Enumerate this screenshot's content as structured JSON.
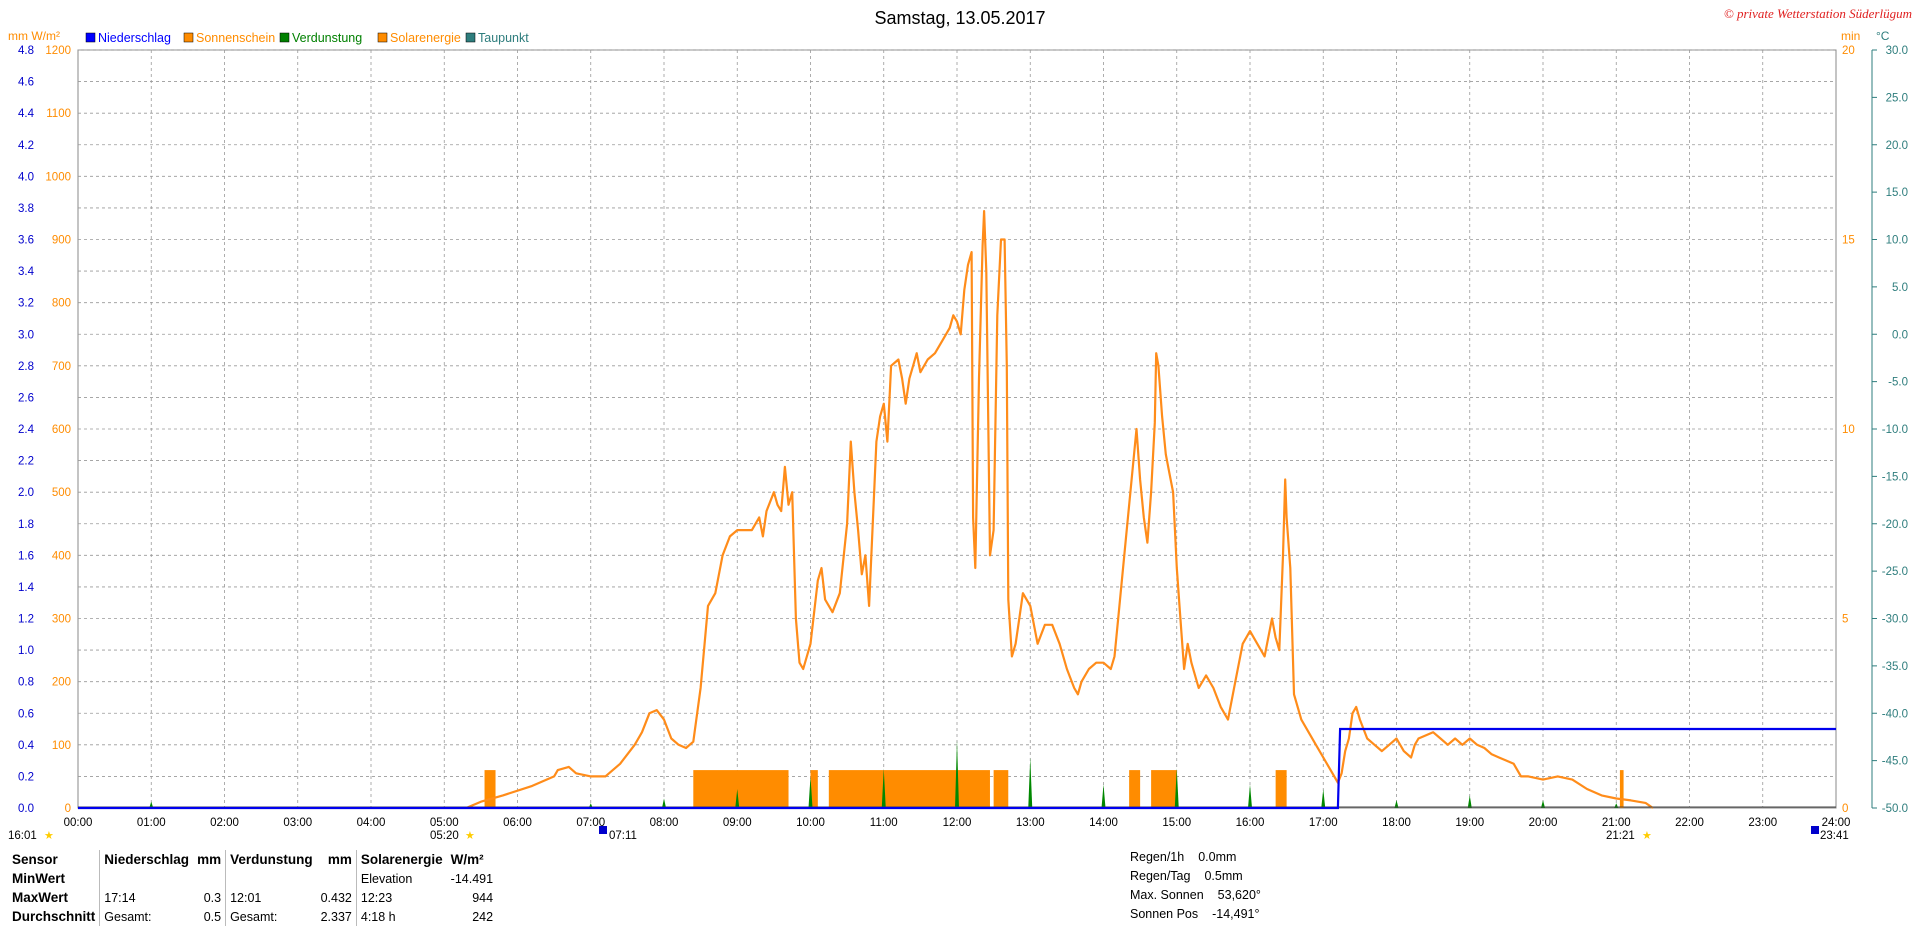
{
  "header": {
    "title": "Samstag, 13.05.2017",
    "copyright": "© private Wetterstation Süderlügum",
    "left_units": "mm  W/m²",
    "right_unit_min": "min",
    "right_unit_temp": "°C"
  },
  "legend": [
    {
      "label": "Niederschlag",
      "color": "#0000ff"
    },
    {
      "label": "Sonnenschein",
      "color": "#ff8c00"
    },
    {
      "label": "Verdunstung",
      "color": "#008000"
    },
    {
      "label": "Solarenergie",
      "color": "#ff8c00"
    },
    {
      "label": "Taupunkt",
      "color": "#2e7d7d"
    }
  ],
  "colors": {
    "solar": "#ff8c1a",
    "sunshine": "#ff8c00",
    "rain": "#0000ee",
    "evap": "#008800",
    "mm_axis": "#0000cc",
    "wm2_axis": "#ff8c00",
    "temp_axis": "#2e7d7d",
    "grid": "#999999"
  },
  "chart_data": {
    "type": "line",
    "x_unit": "hours",
    "x_range": [
      0,
      24
    ],
    "x_ticks": [
      "00:00",
      "01:00",
      "02:00",
      "03:00",
      "04:00",
      "05:00",
      "06:00",
      "07:00",
      "08:00",
      "09:00",
      "10:00",
      "11:00",
      "12:00",
      "13:00",
      "14:00",
      "15:00",
      "16:00",
      "17:00",
      "18:00",
      "19:00",
      "20:00",
      "21:00",
      "22:00",
      "23:00",
      "24:00"
    ],
    "axes": {
      "mm": {
        "range": [
          0,
          4.8
        ],
        "ticks": [
          "0.0",
          "0.2",
          "0.4",
          "0.6",
          "0.8",
          "1.0",
          "1.2",
          "1.4",
          "1.6",
          "1.8",
          "2.0",
          "2.2",
          "2.4",
          "2.6",
          "2.8",
          "3.0",
          "3.2",
          "3.4",
          "3.6",
          "3.8",
          "4.0",
          "4.2",
          "4.4",
          "4.6",
          "4.8"
        ]
      },
      "wm2": {
        "range": [
          0,
          1200
        ],
        "ticks": [
          "0",
          "100",
          "200",
          "300",
          "400",
          "500",
          "600",
          "700",
          "800",
          "900",
          "1000",
          "1100",
          "1200"
        ]
      },
      "min": {
        "range": [
          0,
          20
        ],
        "ticks": [
          "0",
          "5",
          "10",
          "15",
          "20"
        ]
      },
      "temp": {
        "range": [
          -50,
          30
        ],
        "ticks": [
          "-50.0",
          "-45.0",
          "-40.0",
          "-35.0",
          "-30.0",
          "-25.0",
          "-20.0",
          "-15.0",
          "-10.0",
          "-5.0",
          "0.0",
          "5.0",
          "10.0",
          "15.0",
          "20.0",
          "25.0",
          "30.0"
        ]
      }
    },
    "series": [
      {
        "name": "Solarenergie",
        "axis": "wm2",
        "points": [
          [
            5.3,
            0
          ],
          [
            5.5,
            10
          ],
          [
            5.8,
            20
          ],
          [
            6.2,
            35
          ],
          [
            6.5,
            50
          ],
          [
            6.55,
            60
          ],
          [
            6.7,
            65
          ],
          [
            6.8,
            55
          ],
          [
            7.0,
            50
          ],
          [
            7.2,
            50
          ],
          [
            7.4,
            70
          ],
          [
            7.6,
            100
          ],
          [
            7.7,
            120
          ],
          [
            7.8,
            150
          ],
          [
            7.9,
            155
          ],
          [
            8.0,
            140
          ],
          [
            8.1,
            110
          ],
          [
            8.2,
            100
          ],
          [
            8.3,
            95
          ],
          [
            8.4,
            105
          ],
          [
            8.5,
            190
          ],
          [
            8.6,
            320
          ],
          [
            8.7,
            340
          ],
          [
            8.8,
            400
          ],
          [
            8.9,
            430
          ],
          [
            9.0,
            440
          ],
          [
            9.1,
            440
          ],
          [
            9.2,
            440
          ],
          [
            9.3,
            460
          ],
          [
            9.35,
            430
          ],
          [
            9.4,
            470
          ],
          [
            9.5,
            500
          ],
          [
            9.55,
            480
          ],
          [
            9.6,
            470
          ],
          [
            9.65,
            540
          ],
          [
            9.7,
            480
          ],
          [
            9.75,
            500
          ],
          [
            9.8,
            300
          ],
          [
            9.85,
            230
          ],
          [
            9.9,
            220
          ],
          [
            10.0,
            260
          ],
          [
            10.1,
            360
          ],
          [
            10.15,
            380
          ],
          [
            10.2,
            330
          ],
          [
            10.3,
            310
          ],
          [
            10.4,
            340
          ],
          [
            10.5,
            450
          ],
          [
            10.55,
            580
          ],
          [
            10.6,
            500
          ],
          [
            10.65,
            440
          ],
          [
            10.7,
            370
          ],
          [
            10.75,
            400
          ],
          [
            10.8,
            320
          ],
          [
            10.9,
            580
          ],
          [
            10.95,
            620
          ],
          [
            11.0,
            640
          ],
          [
            11.05,
            580
          ],
          [
            11.1,
            700
          ],
          [
            11.2,
            710
          ],
          [
            11.25,
            680
          ],
          [
            11.3,
            640
          ],
          [
            11.35,
            680
          ],
          [
            11.4,
            700
          ],
          [
            11.45,
            720
          ],
          [
            11.5,
            690
          ],
          [
            11.6,
            710
          ],
          [
            11.7,
            720
          ],
          [
            11.8,
            740
          ],
          [
            11.9,
            760
          ],
          [
            11.95,
            780
          ],
          [
            12.0,
            770
          ],
          [
            12.05,
            750
          ],
          [
            12.1,
            820
          ],
          [
            12.15,
            860
          ],
          [
            12.2,
            880
          ],
          [
            12.22,
            460
          ],
          [
            12.25,
            380
          ],
          [
            12.3,
            680
          ],
          [
            12.35,
            890
          ],
          [
            12.37,
            945
          ],
          [
            12.4,
            850
          ],
          [
            12.45,
            400
          ],
          [
            12.5,
            440
          ],
          [
            12.55,
            780
          ],
          [
            12.6,
            900
          ],
          [
            12.65,
            900
          ],
          [
            12.68,
            700
          ],
          [
            12.7,
            330
          ],
          [
            12.75,
            240
          ],
          [
            12.8,
            260
          ],
          [
            12.85,
            300
          ],
          [
            12.9,
            340
          ],
          [
            13.0,
            320
          ],
          [
            13.1,
            260
          ],
          [
            13.2,
            290
          ],
          [
            13.3,
            290
          ],
          [
            13.4,
            260
          ],
          [
            13.5,
            220
          ],
          [
            13.6,
            190
          ],
          [
            13.65,
            180
          ],
          [
            13.7,
            200
          ],
          [
            13.8,
            220
          ],
          [
            13.9,
            230
          ],
          [
            14.0,
            230
          ],
          [
            14.1,
            220
          ],
          [
            14.15,
            240
          ],
          [
            14.2,
            300
          ],
          [
            14.3,
            420
          ],
          [
            14.45,
            600
          ],
          [
            14.5,
            520
          ],
          [
            14.55,
            460
          ],
          [
            14.6,
            420
          ],
          [
            14.65,
            500
          ],
          [
            14.7,
            610
          ],
          [
            14.72,
            720
          ],
          [
            14.75,
            700
          ],
          [
            14.8,
            620
          ],
          [
            14.85,
            560
          ],
          [
            14.9,
            530
          ],
          [
            14.95,
            500
          ],
          [
            15.0,
            380
          ],
          [
            15.05,
            300
          ],
          [
            15.1,
            220
          ],
          [
            15.15,
            260
          ],
          [
            15.2,
            230
          ],
          [
            15.3,
            190
          ],
          [
            15.4,
            210
          ],
          [
            15.5,
            190
          ],
          [
            15.6,
            160
          ],
          [
            15.7,
            140
          ],
          [
            15.8,
            200
          ],
          [
            15.9,
            260
          ],
          [
            16.0,
            280
          ],
          [
            16.1,
            260
          ],
          [
            16.2,
            240
          ],
          [
            16.3,
            300
          ],
          [
            16.35,
            270
          ],
          [
            16.4,
            250
          ],
          [
            16.45,
            400
          ],
          [
            16.48,
            520
          ],
          [
            16.5,
            460
          ],
          [
            16.55,
            380
          ],
          [
            16.6,
            180
          ],
          [
            16.7,
            140
          ],
          [
            16.8,
            120
          ],
          [
            16.9,
            100
          ],
          [
            17.0,
            80
          ],
          [
            17.1,
            60
          ],
          [
            17.2,
            40
          ],
          [
            17.25,
            55
          ],
          [
            17.3,
            90
          ],
          [
            17.35,
            110
          ],
          [
            17.4,
            150
          ],
          [
            17.45,
            160
          ],
          [
            17.5,
            140
          ],
          [
            17.6,
            110
          ],
          [
            17.7,
            100
          ],
          [
            17.8,
            90
          ],
          [
            17.9,
            100
          ],
          [
            18.0,
            110
          ],
          [
            18.1,
            90
          ],
          [
            18.2,
            80
          ],
          [
            18.25,
            100
          ],
          [
            18.3,
            110
          ],
          [
            18.4,
            115
          ],
          [
            18.5,
            120
          ],
          [
            18.6,
            110
          ],
          [
            18.7,
            100
          ],
          [
            18.8,
            110
          ],
          [
            18.9,
            100
          ],
          [
            19.0,
            110
          ],
          [
            19.1,
            100
          ],
          [
            19.2,
            95
          ],
          [
            19.3,
            85
          ],
          [
            19.4,
            80
          ],
          [
            19.5,
            75
          ],
          [
            19.6,
            70
          ],
          [
            19.7,
            50
          ],
          [
            19.8,
            50
          ],
          [
            20.0,
            45
          ],
          [
            20.2,
            50
          ],
          [
            20.4,
            45
          ],
          [
            20.6,
            30
          ],
          [
            20.8,
            20
          ],
          [
            21.0,
            15
          ],
          [
            21.2,
            12
          ],
          [
            21.4,
            8
          ],
          [
            21.5,
            0
          ]
        ]
      },
      {
        "name": "Sonnenschein",
        "axis": "min",
        "bars": [
          [
            5.55,
            5.7,
            1
          ],
          [
            8.4,
            9.7,
            1
          ],
          [
            10.0,
            10.1,
            1
          ],
          [
            10.25,
            11.0,
            1
          ],
          [
            11.0,
            12.0,
            1
          ],
          [
            12.0,
            12.45,
            1
          ],
          [
            12.5,
            12.7,
            1
          ],
          [
            14.35,
            14.5,
            1
          ],
          [
            14.65,
            15.0,
            1
          ],
          [
            16.35,
            16.5,
            1
          ],
          [
            21.05,
            21.1,
            1
          ]
        ]
      },
      {
        "name": "Niederschlag",
        "axis": "mm",
        "points": [
          [
            0,
            0
          ],
          [
            17.2,
            0
          ],
          [
            17.23,
            0.5
          ],
          [
            24,
            0.5
          ]
        ]
      },
      {
        "name": "Verdunstung",
        "axis": "mm",
        "spikes": [
          [
            1.0,
            0.04
          ],
          [
            7.0,
            0.03
          ],
          [
            8.0,
            0.06
          ],
          [
            9.0,
            0.12
          ],
          [
            10.0,
            0.2
          ],
          [
            11.0,
            0.25
          ],
          [
            12.0,
            0.43
          ],
          [
            13.0,
            0.32
          ],
          [
            14.0,
            0.15
          ],
          [
            15.0,
            0.25
          ],
          [
            16.0,
            0.15
          ],
          [
            17.0,
            0.12
          ],
          [
            18.0,
            0.05
          ],
          [
            19.0,
            0.08
          ],
          [
            20.0,
            0.05
          ],
          [
            21.0,
            0.03
          ]
        ]
      }
    ],
    "markers": {
      "sunrise_label": "05:20",
      "sunset_label": "21:21",
      "marker_0711": "07:11",
      "marker_2341": "23:41",
      "start_label": "16:01"
    }
  },
  "footer": {
    "col_sensor": [
      "Sensor",
      "MinWert",
      "MaxWert",
      "Durchschnitt"
    ],
    "niederschlag": {
      "head": "Niederschlag",
      "unit": "mm",
      "max_time": "17:14",
      "max_val": "0.3",
      "avg_label": "Gesamt:",
      "avg_val": "0.5"
    },
    "verdunstung": {
      "head": "Verdunstung",
      "unit": "mm",
      "max_time": "12:01",
      "max_val": "0.432",
      "avg_label": "Gesamt:",
      "avg_val": "2.337"
    },
    "solar": {
      "head": "Solarenergie",
      "unit": "W/m²",
      "min_label": "Elevation",
      "min_val": "-14.491",
      "max_time": "12:23",
      "max_val": "944",
      "avg_label": "4:18 h",
      "avg_val": "242"
    },
    "right": [
      {
        "label": "Regen/1h",
        "value": "0.0mm"
      },
      {
        "label": "Regen/Tag",
        "value": "0.5mm"
      },
      {
        "label": "Max. Sonnen",
        "value": "53,620°"
      },
      {
        "label": "Sonnen Pos",
        "value": "-14,491°"
      }
    ]
  }
}
